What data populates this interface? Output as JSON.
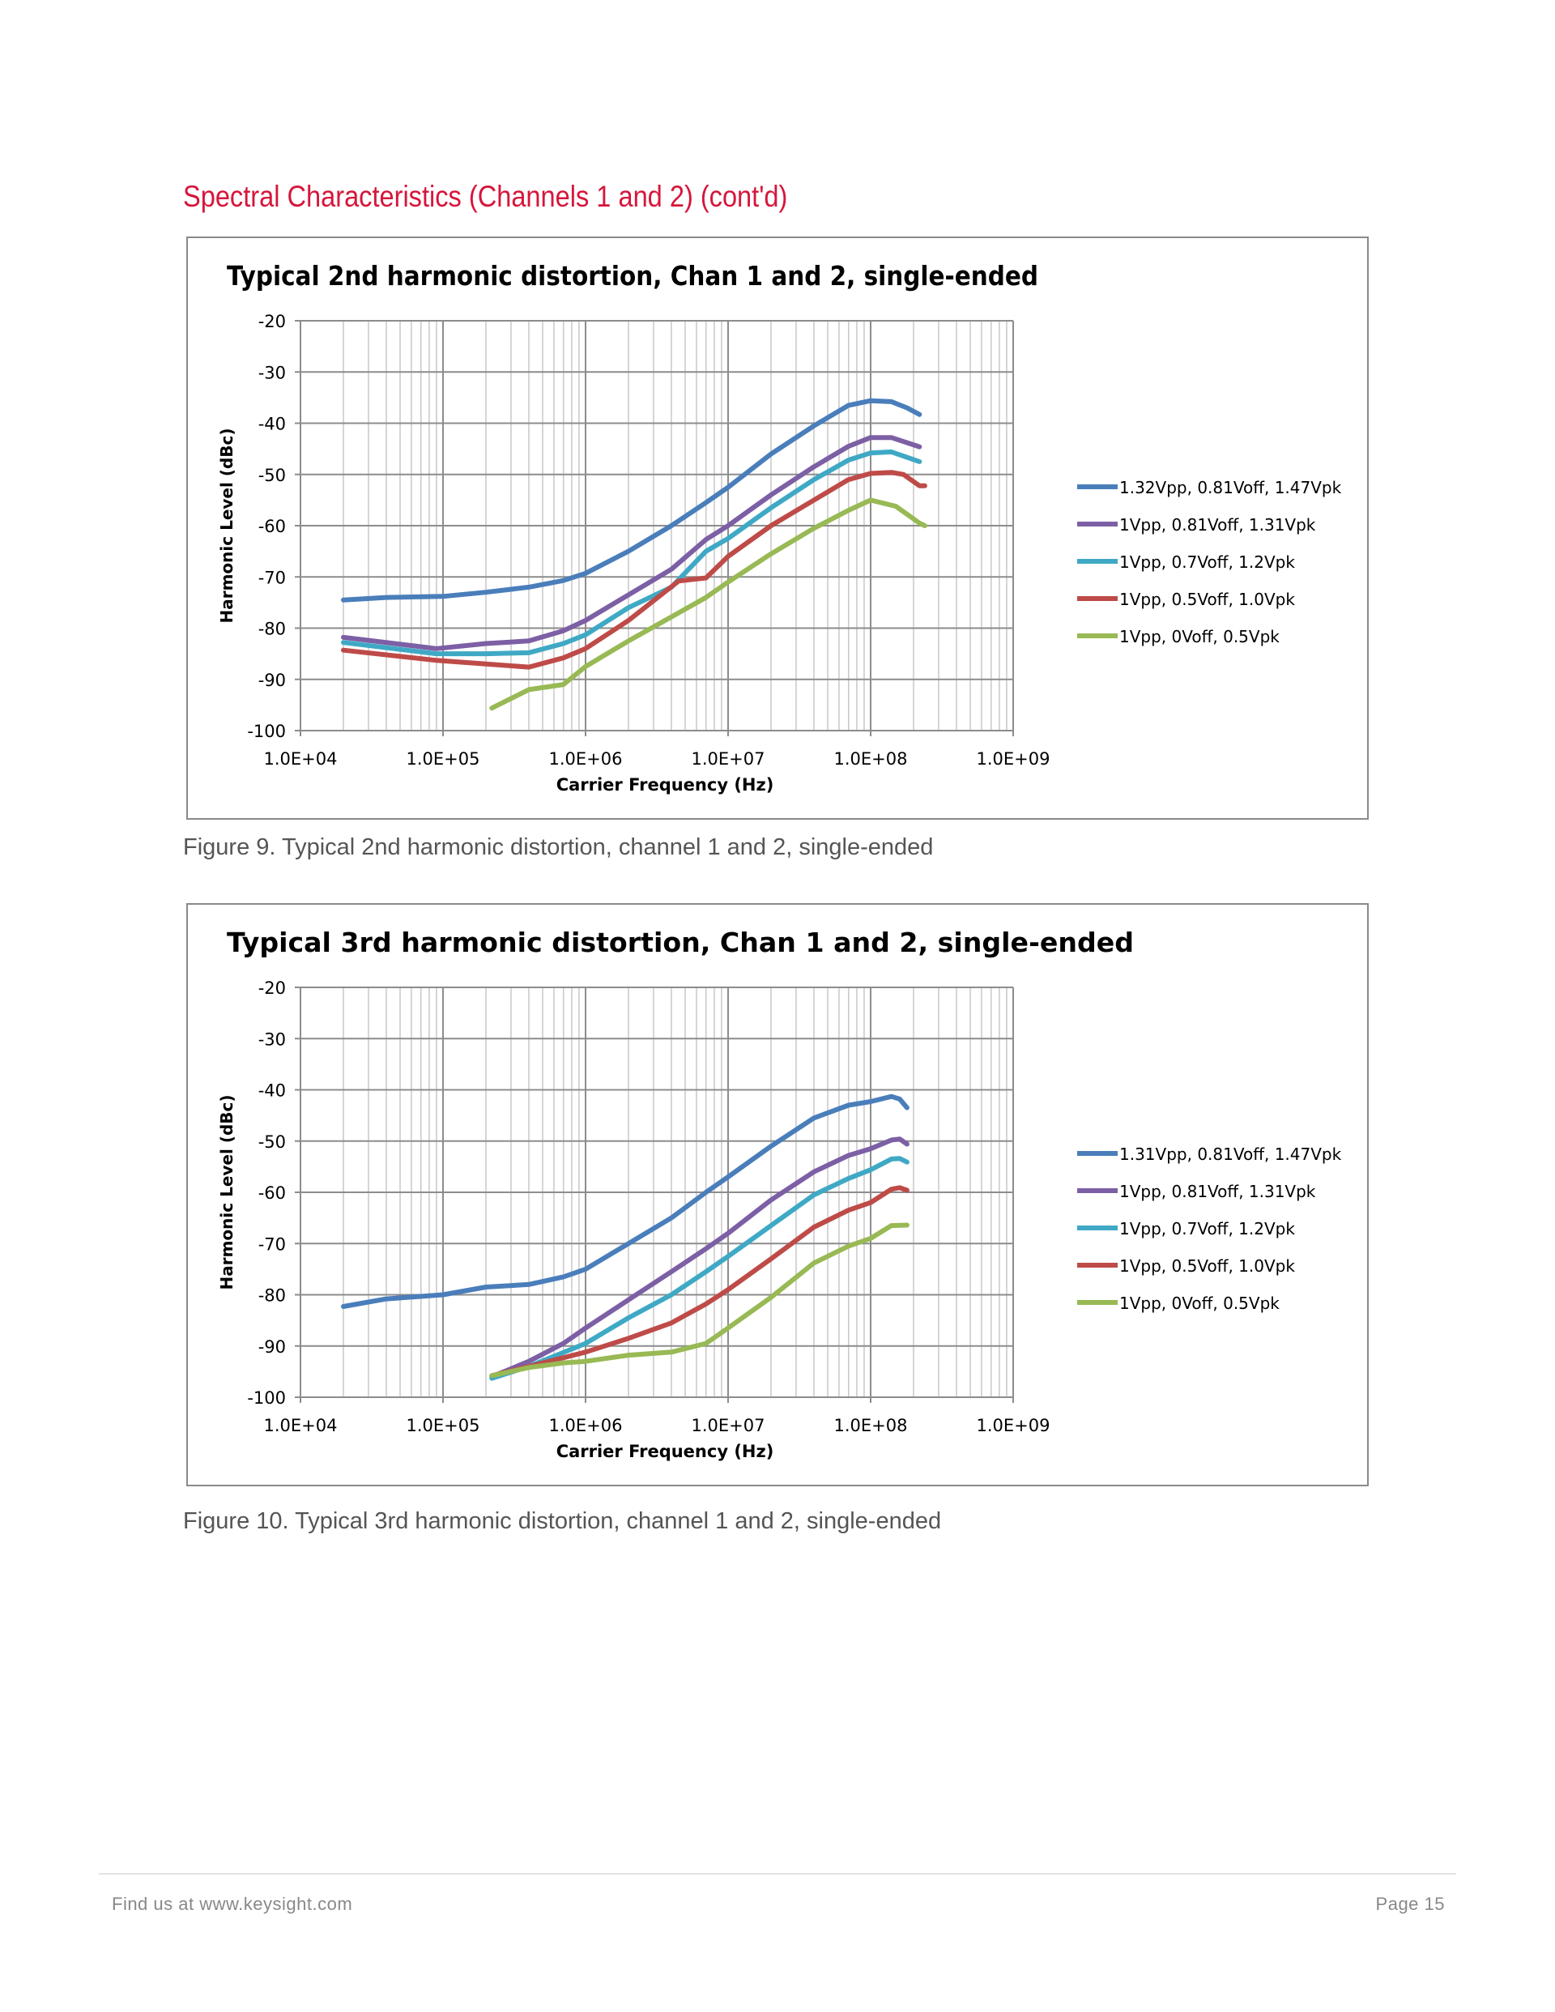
{
  "heading": "Spectral Characteristics (Channels 1 and 2) (cont'd)",
  "captions": [
    "Figure 9. Typical 2nd harmonic distortion, channel 1 and 2, single-ended",
    "Figure 10. Typical 3rd harmonic distortion, channel 1 and 2, single-ended"
  ],
  "footer": {
    "left": "Find us at www.keysight.com",
    "right": "Page 15"
  },
  "chart_data": [
    {
      "type": "line",
      "title": "Typical 2nd harmonic distortion, Chan 1 and 2, single-ended",
      "xlabel": "Carrier Frequency (Hz)",
      "ylabel": "Harmonic Level (dBc)",
      "xscale": "log",
      "xlim": [
        10000,
        1000000000
      ],
      "ylim": [
        -100,
        -20
      ],
      "xticks": [
        "1.0E+04",
        "1.0E+05",
        "1.0E+06",
        "1.0E+07",
        "1.0E+08",
        "1.0E+09"
      ],
      "yticks": [
        "-20",
        "-30",
        "-40",
        "-50",
        "-60",
        "-70",
        "-80",
        "-90",
        "-100"
      ],
      "grid": true,
      "legend": "right",
      "series": [
        {
          "name": "1.32Vpp, 0.81Voff, 1.47Vpk",
          "color": "#4a7ebb",
          "x": [
            20000.0,
            40000.0,
            100000.0,
            200000.0,
            400000.0,
            700000.0,
            1000000.0,
            2000000.0,
            4000000.0,
            7000000.0,
            10000000.0,
            20000000.0,
            40000000.0,
            70000000.0,
            100000000.0,
            140000000.0,
            180000000.0,
            220000000.0
          ],
          "y": [
            -74.5,
            -74,
            -73.8,
            -73,
            -72,
            -70.7,
            -69.3,
            -65,
            -60,
            -55.5,
            -52.5,
            -46,
            -40.5,
            -36.5,
            -35.6,
            -35.8,
            -37,
            -38.3
          ]
        },
        {
          "name": "1Vpp, 0.81Voff, 1.31Vpk",
          "color": "#7d5fa5",
          "x": [
            20000.0,
            90000.0,
            200000.0,
            400000.0,
            700000.0,
            1000000.0,
            2000000.0,
            4000000.0,
            7000000.0,
            10000000.0,
            20000000.0,
            40000000.0,
            70000000.0,
            100000000.0,
            140000000.0,
            220000000.0
          ],
          "y": [
            -81.8,
            -84,
            -83,
            -82.5,
            -80.5,
            -78.5,
            -73.5,
            -68.5,
            -62.7,
            -60,
            -54,
            -48.5,
            -44.5,
            -42.8,
            -42.8,
            -44.6
          ]
        },
        {
          "name": "1Vpp, 0.7Voff, 1.2Vpk",
          "color": "#3fa9c5",
          "x": [
            20000.0,
            90000.0,
            200000.0,
            400000.0,
            700000.0,
            1000000.0,
            2000000.0,
            4000000.0,
            7000000.0,
            10000000.0,
            20000000.0,
            40000000.0,
            70000000.0,
            100000000.0,
            140000000.0,
            220000000.0
          ],
          "y": [
            -82.8,
            -85,
            -85,
            -84.8,
            -83,
            -81.3,
            -76,
            -72,
            -65,
            -62.5,
            -56.5,
            -51,
            -47.2,
            -45.8,
            -45.6,
            -47.5
          ]
        },
        {
          "name": "1Vpp, 0.5Voff, 1.0Vpk",
          "color": "#be4b48",
          "x": [
            20000.0,
            90000.0,
            200000.0,
            400000.0,
            700000.0,
            1000000.0,
            2000000.0,
            4500000.0,
            7000000.0,
            10000000.0,
            20000000.0,
            40000000.0,
            70000000.0,
            100000000.0,
            140000000.0,
            170000000.0,
            220000000.0,
            240000000.0
          ],
          "y": [
            -84.3,
            -86.3,
            -87,
            -87.6,
            -85.8,
            -84,
            -78.5,
            -70.8,
            -70.2,
            -66,
            -60,
            -55,
            -51,
            -49.8,
            -49.6,
            -50,
            -52.2,
            -52.2
          ]
        },
        {
          "name": "1Vpp, 0Voff, 0.5Vpk",
          "color": "#98b954",
          "x": [
            220000.0,
            400000.0,
            700000.0,
            1000000.0,
            2000000.0,
            4000000.0,
            7000000.0,
            10000000.0,
            20000000.0,
            40000000.0,
            70000000.0,
            100000000.0,
            150000000.0,
            220000000.0,
            240000000.0
          ],
          "y": [
            -95.6,
            -92,
            -91,
            -87.5,
            -82.5,
            -77.8,
            -74,
            -71,
            -65.5,
            -60.5,
            -57,
            -55,
            -56.2,
            -59.5,
            -60
          ]
        }
      ]
    },
    {
      "type": "line",
      "title": "Typical 3rd harmonic distortion, Chan 1 and 2, single-ended",
      "xlabel": "Carrier Frequency (Hz)",
      "ylabel": "Harmonic Level (dBc)",
      "xscale": "log",
      "xlim": [
        10000,
        1000000000
      ],
      "ylim": [
        -100,
        -20
      ],
      "xticks": [
        "1.0E+04",
        "1.0E+05",
        "1.0E+06",
        "1.0E+07",
        "1.0E+08",
        "1.0E+09"
      ],
      "yticks": [
        "-20",
        "-30",
        "-40",
        "-50",
        "-60",
        "-70",
        "-80",
        "-90",
        "-100"
      ],
      "grid": true,
      "legend": "right",
      "series": [
        {
          "name": "1.31Vpp, 0.81Voff, 1.47Vpk",
          "color": "#4a7ebb",
          "x": [
            20000.0,
            40000.0,
            100000.0,
            200000.0,
            400000.0,
            700000.0,
            1000000.0,
            2000000.0,
            4000000.0,
            7000000.0,
            10000000.0,
            20000000.0,
            40000000.0,
            70000000.0,
            100000000.0,
            140000000.0,
            160000000.0,
            180000000.0
          ],
          "y": [
            -82.3,
            -80.8,
            -80,
            -78.5,
            -78,
            -76.5,
            -75,
            -70,
            -65,
            -60,
            -57,
            -51,
            -45.5,
            -43,
            -42.3,
            -41.3,
            -41.8,
            -43.5
          ]
        },
        {
          "name": "1Vpp, 0.81Voff, 1.31Vpk",
          "color": "#7d5fa5",
          "x": [
            220000.0,
            400000.0,
            700000.0,
            1000000.0,
            2000000.0,
            4000000.0,
            7000000.0,
            10000000.0,
            20000000.0,
            40000000.0,
            70000000.0,
            100000000.0,
            140000000.0,
            160000000.0,
            180000000.0
          ],
          "y": [
            -96,
            -93,
            -89.5,
            -86.5,
            -81,
            -75.5,
            -71,
            -68,
            -61.5,
            -56,
            -52.8,
            -51.5,
            -49.8,
            -49.6,
            -50.6
          ]
        },
        {
          "name": "1Vpp, 0.7Voff, 1.2Vpk",
          "color": "#3fa9c5",
          "x": [
            220000.0,
            400000.0,
            1000000.0,
            2000000.0,
            4000000.0,
            7000000.0,
            10000000.0,
            20000000.0,
            40000000.0,
            70000000.0,
            100000000.0,
            140000000.0,
            160000000.0,
            180000000.0
          ],
          "y": [
            -96.3,
            -94,
            -89.5,
            -84.5,
            -80,
            -75.5,
            -72.5,
            -66.5,
            -60.5,
            -57.3,
            -55.6,
            -53.5,
            -53.4,
            -54.1
          ]
        },
        {
          "name": "1Vpp, 0.5Voff, 1.0Vpk",
          "color": "#be4b48",
          "x": [
            220000.0,
            400000.0,
            1000000.0,
            2000000.0,
            4000000.0,
            7000000.0,
            10000000.0,
            20000000.0,
            40000000.0,
            70000000.0,
            100000000.0,
            140000000.0,
            160000000.0,
            180000000.0
          ],
          "y": [
            -95.8,
            -94,
            -91.2,
            -88.5,
            -85.5,
            -81.8,
            -79,
            -73,
            -66.8,
            -63.5,
            -62,
            -59.4,
            -59.1,
            -59.6
          ]
        },
        {
          "name": "1Vpp, 0Voff, 0.5Vpk",
          "color": "#98b954",
          "x": [
            220000.0,
            400000.0,
            700000.0,
            1000000.0,
            2000000.0,
            4000000.0,
            7000000.0,
            10000000.0,
            20000000.0,
            40000000.0,
            70000000.0,
            100000000.0,
            140000000.0,
            180000000.0
          ],
          "y": [
            -95.8,
            -94.2,
            -93.3,
            -93,
            -91.8,
            -91.2,
            -89.5,
            -86.5,
            -80.5,
            -73.8,
            -70.5,
            -69,
            -66.5,
            -66.4
          ]
        }
      ]
    }
  ]
}
